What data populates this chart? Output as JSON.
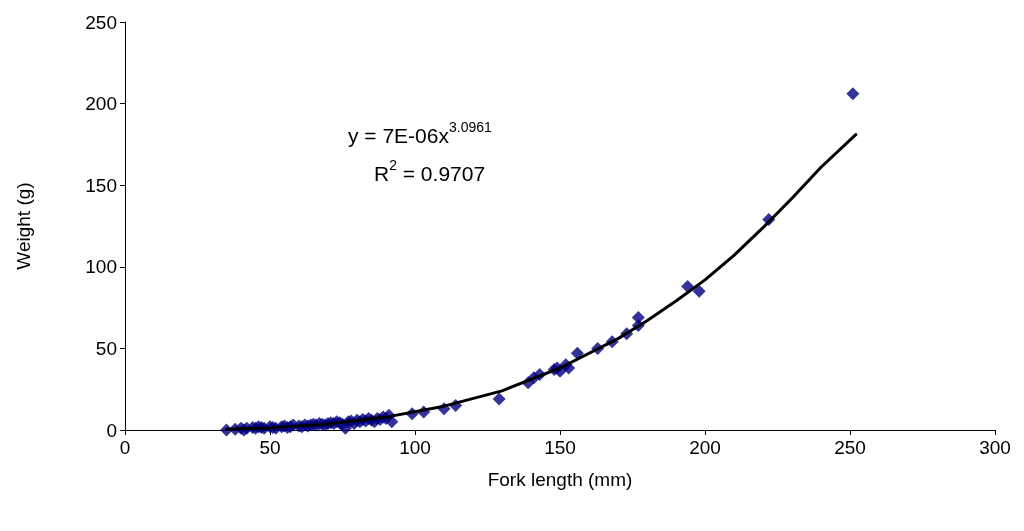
{
  "chart_data": {
    "type": "scatter",
    "xlabel": "Fork length (mm)",
    "ylabel": "Weight (g)",
    "xlim": [
      0,
      300
    ],
    "xticks": [
      0,
      50,
      100,
      150,
      200,
      250,
      300
    ],
    "ylim": [
      0,
      250
    ],
    "yticks": [
      0,
      50,
      100,
      150,
      200,
      250
    ],
    "grid": false,
    "marker": "diamond",
    "annotations": [
      "y = 7E-06x$^{3.0961}$",
      "R$^{2}$ = 0.9707"
    ],
    "series": [
      {
        "color": "#000080",
        "x": [
          35,
          38,
          40,
          41,
          42,
          44,
          45,
          46,
          47,
          48,
          50,
          51,
          52,
          54,
          55,
          56,
          57,
          58,
          60,
          61,
          62,
          63,
          64,
          65,
          66,
          67,
          68,
          69,
          70,
          71,
          72,
          73,
          74,
          75,
          76,
          77,
          78,
          79,
          80,
          81,
          82,
          83,
          84,
          85,
          86,
          87,
          88,
          89,
          90,
          91,
          92,
          99,
          103,
          110,
          114,
          129,
          139,
          141,
          143,
          148,
          149,
          150,
          152,
          153,
          156,
          163,
          168,
          173,
          177,
          177,
          194,
          198,
          222,
          251
        ],
        "values": [
          0,
          0.5,
          1,
          0,
          1,
          1.5,
          1,
          2,
          1.5,
          1,
          2,
          1.5,
          1,
          2,
          2.5,
          1.5,
          2,
          3,
          2.5,
          2,
          3,
          2.5,
          3,
          3.5,
          3,
          4,
          3.5,
          3,
          4,
          4.5,
          4,
          5,
          4.5,
          3.5,
          1,
          5,
          5.5,
          4,
          6,
          5,
          6.5,
          5.5,
          7,
          6,
          5,
          7,
          6.5,
          8,
          7,
          9,
          5,
          10,
          11,
          13,
          15,
          19,
          29,
          32,
          34,
          37,
          38,
          36,
          40,
          38,
          47,
          50,
          54,
          59,
          69,
          64,
          88,
          85,
          129,
          206
        ]
      },
      {
        "type": "line",
        "color": "#000000",
        "marker": "none",
        "x": [
          35,
          50,
          70,
          90,
          110,
          130,
          150,
          170,
          180,
          190,
          200,
          210,
          220,
          230,
          240,
          252
        ],
        "values": [
          0.4,
          1.3,
          3.7,
          7.9,
          14.6,
          24,
          38,
          56,
          67,
          79,
          92,
          107,
          124,
          142,
          161,
          181
        ]
      }
    ]
  }
}
